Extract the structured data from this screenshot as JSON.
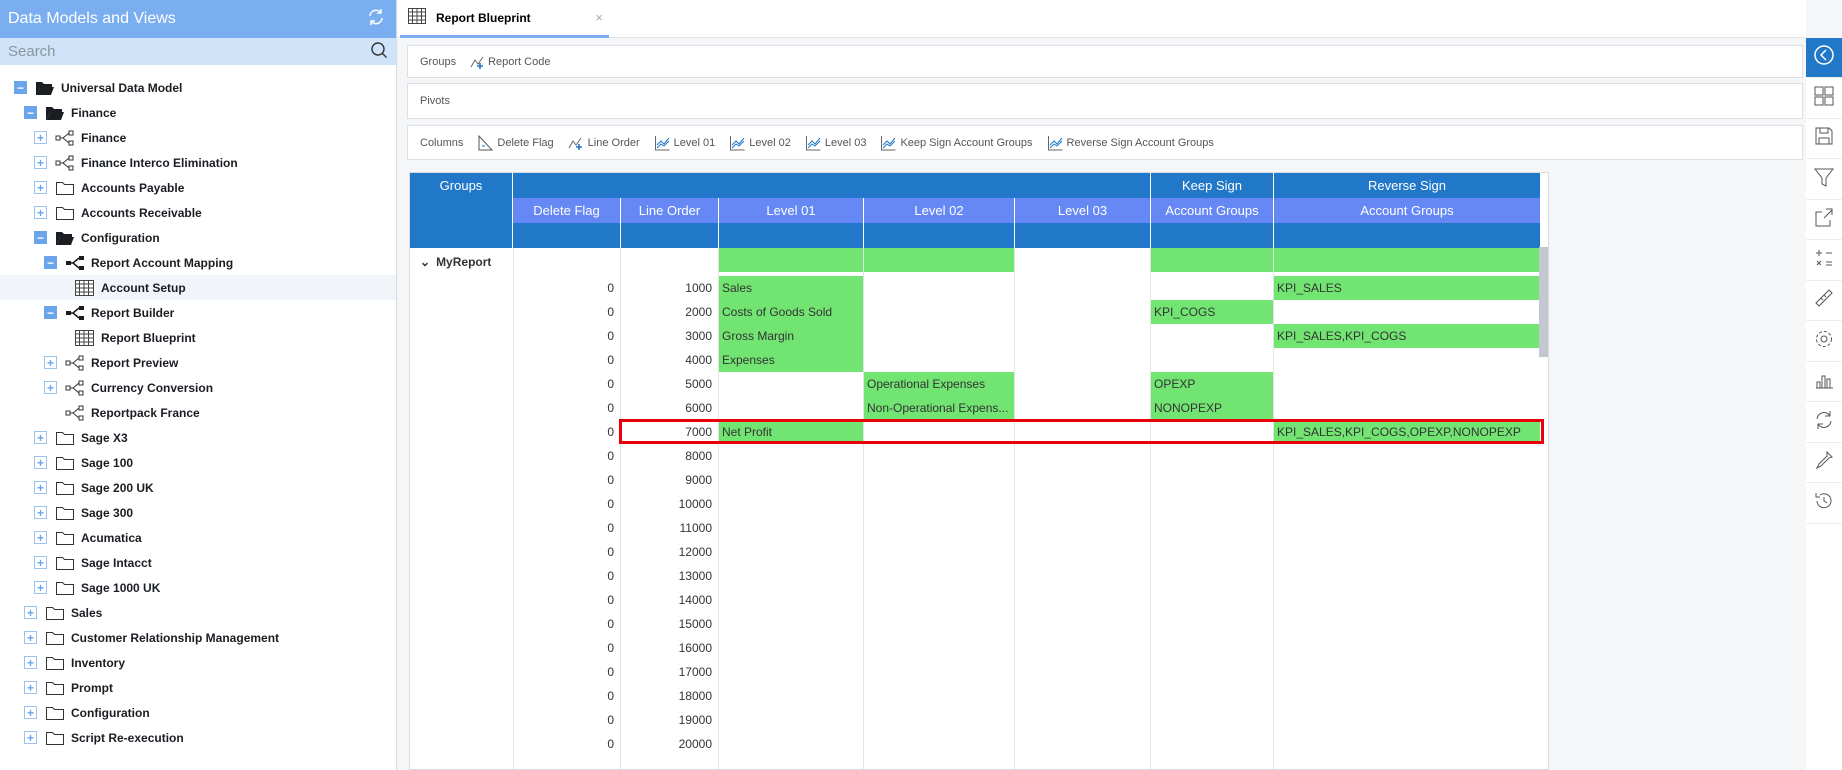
{
  "sidebar": {
    "title": "Data Models and Views",
    "search_placeholder": "Search",
    "items": [
      {
        "label": "Universal Data Model",
        "level": 0,
        "toggle": "minus",
        "icon": "folder-open"
      },
      {
        "label": "Finance",
        "level": 1,
        "toggle": "minus",
        "icon": "folder-open"
      },
      {
        "label": "Finance",
        "level": 2,
        "toggle": "plus",
        "icon": "data-model"
      },
      {
        "label": "Finance Interco Elimination",
        "level": 2,
        "toggle": "plus",
        "icon": "data-model"
      },
      {
        "label": "Accounts Payable",
        "level": 2,
        "toggle": "plus",
        "icon": "folder"
      },
      {
        "label": "Accounts Receivable",
        "level": 2,
        "toggle": "plus",
        "icon": "folder"
      },
      {
        "label": "Configuration",
        "level": 2,
        "toggle": "minus",
        "icon": "folder-open"
      },
      {
        "label": "Report Account Mapping",
        "level": 3,
        "toggle": "minus",
        "icon": "data-model-filled"
      },
      {
        "label": "Account Setup",
        "level": 4,
        "toggle": "none",
        "icon": "grid",
        "selected": true
      },
      {
        "label": "Report Builder",
        "level": 3,
        "toggle": "minus",
        "icon": "data-model-filled"
      },
      {
        "label": "Report Blueprint",
        "level": 4,
        "toggle": "none",
        "icon": "grid"
      },
      {
        "label": "Report Preview",
        "level": 3,
        "toggle": "plus",
        "icon": "data-model"
      },
      {
        "label": "Currency Conversion",
        "level": 3,
        "toggle": "plus",
        "icon": "data-model"
      },
      {
        "label": "Reportpack France",
        "level": 3,
        "toggle": "none",
        "icon": "data-model"
      },
      {
        "label": "Sage X3",
        "level": 2,
        "toggle": "plus",
        "icon": "folder"
      },
      {
        "label": "Sage 100",
        "level": 2,
        "toggle": "plus",
        "icon": "folder"
      },
      {
        "label": "Sage 200 UK",
        "level": 2,
        "toggle": "plus",
        "icon": "folder"
      },
      {
        "label": "Sage 300",
        "level": 2,
        "toggle": "plus",
        "icon": "folder"
      },
      {
        "label": "Acumatica",
        "level": 2,
        "toggle": "plus",
        "icon": "folder"
      },
      {
        "label": "Sage Intacct",
        "level": 2,
        "toggle": "plus",
        "icon": "folder"
      },
      {
        "label": "Sage 1000 UK",
        "level": 2,
        "toggle": "plus",
        "icon": "folder"
      },
      {
        "label": "Sales",
        "level": 1,
        "toggle": "plus",
        "icon": "folder"
      },
      {
        "label": "Customer Relationship Management",
        "level": 1,
        "toggle": "plus",
        "icon": "folder"
      },
      {
        "label": "Inventory",
        "level": 1,
        "toggle": "plus",
        "icon": "folder"
      },
      {
        "label": "Prompt",
        "level": 1,
        "toggle": "plus",
        "icon": "folder"
      },
      {
        "label": "Configuration",
        "level": 1,
        "toggle": "plus",
        "icon": "folder"
      },
      {
        "label": "Script Re-execution",
        "level": 1,
        "toggle": "plus",
        "icon": "folder"
      }
    ]
  },
  "tab": {
    "label": "Report Blueprint",
    "close": "×"
  },
  "groups_bar": {
    "label": "Groups",
    "items": [
      "Report Code"
    ]
  },
  "pivots_bar": {
    "label": "Pivots"
  },
  "columns_bar": {
    "label": "Columns",
    "items": [
      "Delete Flag",
      "Line Order",
      "Level 01",
      "Level 02",
      "Level 03",
      "Keep Sign Account Groups",
      "Reverse Sign Account Groups"
    ]
  },
  "grid": {
    "groups_header": "Groups",
    "top_headers": [
      "",
      "",
      "",
      "",
      "",
      "Keep Sign",
      "Reverse Sign"
    ],
    "sub_headers": [
      "Delete Flag",
      "Line Order",
      "Level 01",
      "Level 02",
      "Level 03",
      "Account Groups",
      "Account Groups"
    ],
    "group_label": "MyReport",
    "group_highlight": [
      false,
      false,
      true,
      true,
      false,
      true,
      true
    ],
    "rows": [
      {
        "delete_flag": "0",
        "line_order": "1000",
        "level01": "Sales",
        "level02": "",
        "level03": "",
        "keep": "",
        "reverse": "KPI_SALES",
        "hl": [
          2,
          6
        ]
      },
      {
        "delete_flag": "0",
        "line_order": "2000",
        "level01": "Costs of Goods Sold",
        "level02": "",
        "level03": "",
        "keep": "KPI_COGS",
        "reverse": "",
        "hl": [
          2,
          5
        ]
      },
      {
        "delete_flag": "0",
        "line_order": "3000",
        "level01": "Gross Margin",
        "level02": "",
        "level03": "",
        "keep": "",
        "reverse": "KPI_SALES,KPI_COGS",
        "hl": [
          2,
          6
        ]
      },
      {
        "delete_flag": "0",
        "line_order": "4000",
        "level01": "Expenses",
        "level02": "",
        "level03": "",
        "keep": "",
        "reverse": "",
        "hl": [
          2
        ]
      },
      {
        "delete_flag": "0",
        "line_order": "5000",
        "level01": "",
        "level02": "Operational Expenses",
        "level03": "",
        "keep": "OPEXP",
        "reverse": "",
        "hl": [
          3,
          5
        ]
      },
      {
        "delete_flag": "0",
        "line_order": "6000",
        "level01": "",
        "level02": "Non-Operational Expens...",
        "level03": "",
        "keep": "NONOPEXP",
        "reverse": "",
        "hl": [
          3,
          5
        ]
      },
      {
        "delete_flag": "0",
        "line_order": "7000",
        "level01": "Net Profit",
        "level02": "",
        "level03": "",
        "keep": "",
        "reverse": "KPI_SALES,KPI_COGS,OPEXP,NONOPEXP",
        "hl": [
          2,
          6
        ],
        "outlined": true
      },
      {
        "delete_flag": "0",
        "line_order": "8000"
      },
      {
        "delete_flag": "0",
        "line_order": "9000"
      },
      {
        "delete_flag": "0",
        "line_order": "10000"
      },
      {
        "delete_flag": "0",
        "line_order": "11000"
      },
      {
        "delete_flag": "0",
        "line_order": "12000"
      },
      {
        "delete_flag": "0",
        "line_order": "13000"
      },
      {
        "delete_flag": "0",
        "line_order": "14000"
      },
      {
        "delete_flag": "0",
        "line_order": "15000"
      },
      {
        "delete_flag": "0",
        "line_order": "16000"
      },
      {
        "delete_flag": "0",
        "line_order": "17000"
      },
      {
        "delete_flag": "0",
        "line_order": "18000"
      },
      {
        "delete_flag": "0",
        "line_order": "19000"
      },
      {
        "delete_flag": "0",
        "line_order": "20000"
      }
    ]
  },
  "right_toolbar": [
    "collapse-panel",
    "layout",
    "save",
    "filter",
    "export",
    "calculator",
    "ruler",
    "settings",
    "chart",
    "refresh",
    "eyedropper",
    "history"
  ],
  "colors": {
    "header": "#2178c8",
    "subheader": "#6688f4",
    "highlight": "#72e472",
    "outline": "#e8000b",
    "sidebar_header": "#7aaef0"
  }
}
